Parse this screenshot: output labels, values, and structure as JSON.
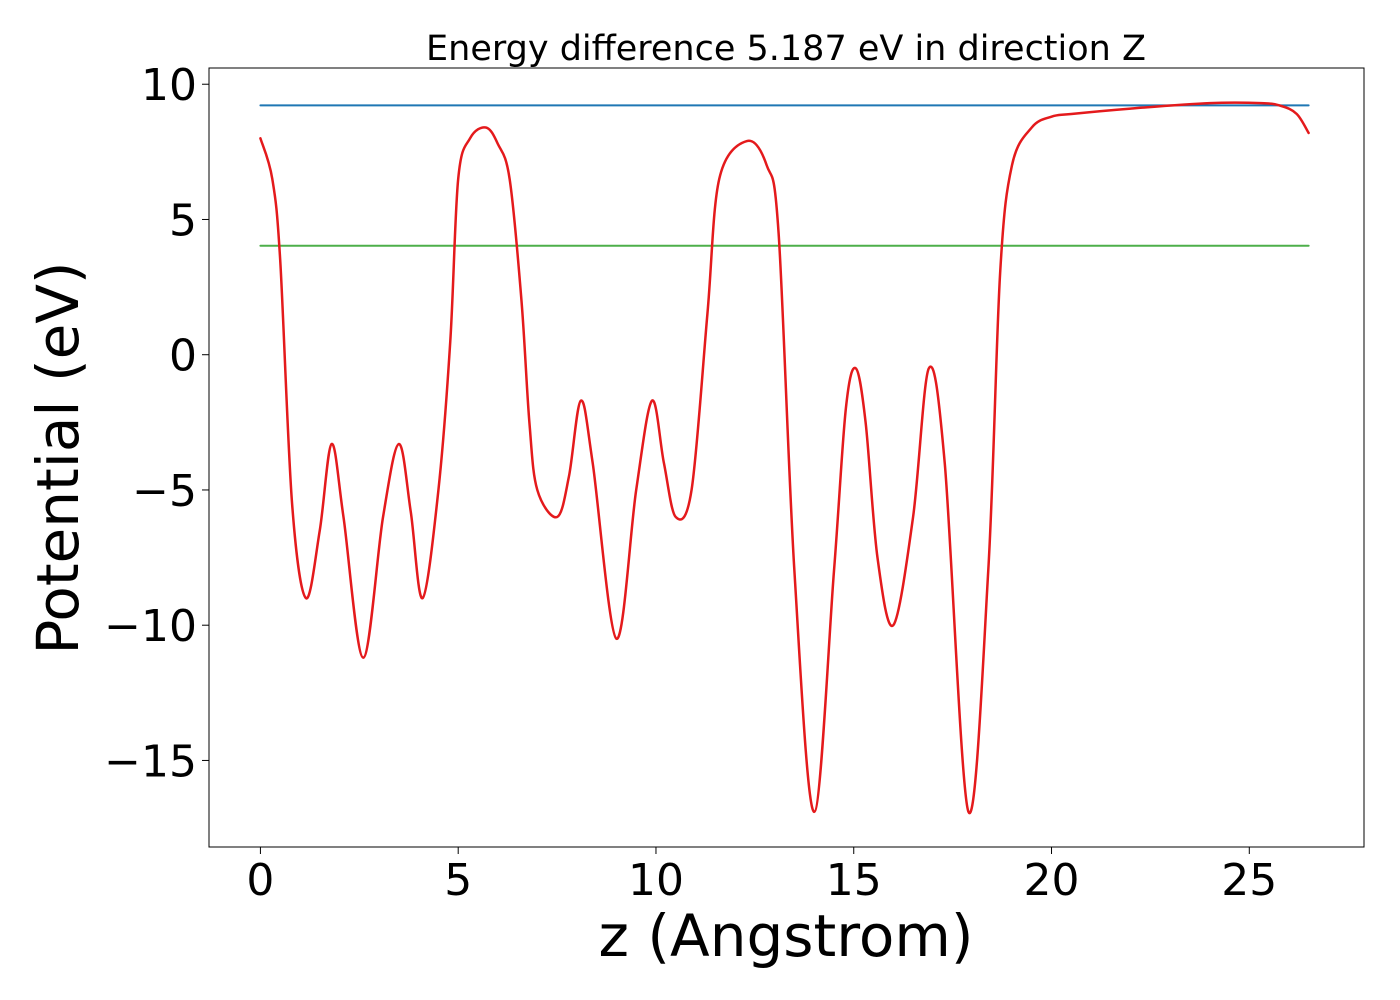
{
  "chart_data": {
    "type": "line",
    "title": "Energy difference 5.187 eV in direction Z",
    "xlabel": "z (Angstrom)",
    "ylabel": "Potential (eV)",
    "xlim": [
      -1.3,
      27.9
    ],
    "ylim": [
      -18.2,
      10.6
    ],
    "xticks": [
      0,
      5,
      10,
      15,
      20,
      25
    ],
    "yticks": [
      10,
      5,
      0,
      -5,
      -10,
      -15
    ],
    "ytick_labels": [
      "10",
      "5",
      "0",
      "−5",
      "−10",
      "−15"
    ],
    "grid": false,
    "colors": {
      "potential": "#e41a1c",
      "upper_level": "#1f77b4",
      "lower_level": "#4daf4a"
    },
    "series": [
      {
        "key": "potential",
        "x": [
          0,
          0.3,
          0.5,
          0.8,
          1.15,
          1.5,
          1.8,
          2.1,
          2.6,
          3.1,
          3.5,
          3.8,
          4.1,
          4.5,
          4.8,
          5.0,
          5.3,
          5.7,
          6.0,
          6.3,
          6.6,
          6.8,
          7.0,
          7.5,
          7.8,
          8.1,
          8.4,
          9.0,
          9.5,
          9.9,
          10.2,
          10.5,
          10.9,
          11.3,
          11.6,
          12.3,
          12.8,
          13.1,
          13.5,
          14.0,
          14.5,
          14.8,
          15.05,
          15.3,
          15.6,
          16.0,
          16.5,
          16.9,
          17.3,
          17.9,
          18.4,
          18.7,
          19.0,
          19.5,
          20.0,
          20.5,
          22.0,
          24.0,
          25.3,
          25.8,
          26.2,
          26.5
        ],
        "y": [
          8.0,
          6.5,
          3.5,
          -5.5,
          -9.0,
          -6.5,
          -3.3,
          -6.0,
          -11.2,
          -6.0,
          -3.3,
          -5.8,
          -9.0,
          -5.0,
          0.5,
          6.5,
          8.0,
          8.4,
          7.8,
          6.5,
          2.0,
          -2.5,
          -5.0,
          -6.0,
          -4.5,
          -1.7,
          -4.0,
          -10.5,
          -5.0,
          -1.7,
          -4.0,
          -6.0,
          -5.0,
          1.5,
          6.5,
          7.9,
          7.0,
          4.5,
          -8.0,
          -16.9,
          -8.0,
          -2.0,
          -0.5,
          -2.5,
          -7.5,
          -10.0,
          -6.0,
          -0.5,
          -4.0,
          -16.9,
          -8.0,
          3.0,
          7.0,
          8.4,
          8.8,
          8.9,
          9.1,
          9.3,
          9.3,
          9.2,
          8.9,
          8.2
        ]
      },
      {
        "key": "upper_level",
        "x": [
          0,
          26.5
        ],
        "y": [
          9.22,
          9.22
        ]
      },
      {
        "key": "lower_level",
        "x": [
          0,
          26.5
        ],
        "y": [
          4.03,
          4.03
        ]
      }
    ]
  }
}
